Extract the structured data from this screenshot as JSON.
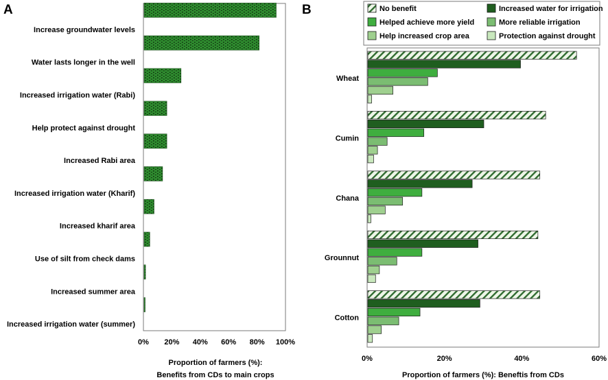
{
  "colors": {
    "panel_a_bar": "#2e8a2e",
    "no_benefit_fill": "#eef6e8",
    "no_benefit_hatch": "#2f6b2f",
    "increased_water": "#1f5e1f",
    "more_yield": "#3fae3f",
    "more_reliable": "#7bbd72",
    "increased_area": "#9fd08f",
    "drought": "#c9e8bd"
  },
  "chart_data": [
    {
      "panel_label": "A",
      "type": "bar",
      "orientation": "horizontal",
      "categories": [
        "Increase groundwater levels",
        "Water lasts longer in the well",
        "Increased irrigation water (Rabi)",
        "Help protect against drought",
        "Increased Rabi area",
        "Increased irrigation water (Kharif)",
        "Increased  kharif  area",
        "Use of silt from check dams",
        "Increased summer area",
        "Increased irrigation water (summer)"
      ],
      "values": [
        93,
        81,
        26,
        16,
        16,
        13,
        7,
        4,
        1,
        0.5
      ],
      "xlim": [
        0,
        100
      ],
      "xticks": [
        "0%",
        "20%",
        "40%",
        "60%",
        "80%",
        "100%"
      ],
      "xlabel_line1": "Proportion of farmers (%):",
      "xlabel_line2": "Benefits from CDs to main crops",
      "ylabel": "",
      "grid": false
    },
    {
      "panel_label": "B",
      "type": "bar",
      "orientation": "horizontal",
      "categories": [
        "Wheat",
        "Cumin",
        "Chana",
        "Grounnut",
        "Cotton"
      ],
      "series": [
        {
          "name": "No benefit",
          "key": "no_benefit",
          "values": [
            54,
            46,
            44.5,
            44,
            44.5
          ]
        },
        {
          "name": "Increased water for irrigation",
          "key": "increased_water",
          "values": [
            39.5,
            30,
            27,
            28.5,
            29
          ]
        },
        {
          "name": "Helped achieve more yield",
          "key": "more_yield",
          "values": [
            18,
            14.5,
            14,
            14,
            13.5
          ]
        },
        {
          "name": "More reliable irrigation",
          "key": "more_reliable",
          "values": [
            15.5,
            5,
            9,
            7.5,
            8
          ]
        },
        {
          "name": "Help increased crop area",
          "key": "increased_area",
          "values": [
            6.5,
            2.5,
            4.5,
            3,
            3.5
          ]
        },
        {
          "name": "Protection against drought",
          "key": "drought",
          "values": [
            1,
            1.5,
            0.8,
            2,
            1.2
          ]
        }
      ],
      "xlim": [
        0,
        60
      ],
      "xticks": [
        "0%",
        "20%",
        "40%",
        "60%"
      ],
      "xlabel": "Proportion of farmers (%): Beneftis from CDs",
      "legend_position": "top",
      "grid": false
    }
  ]
}
